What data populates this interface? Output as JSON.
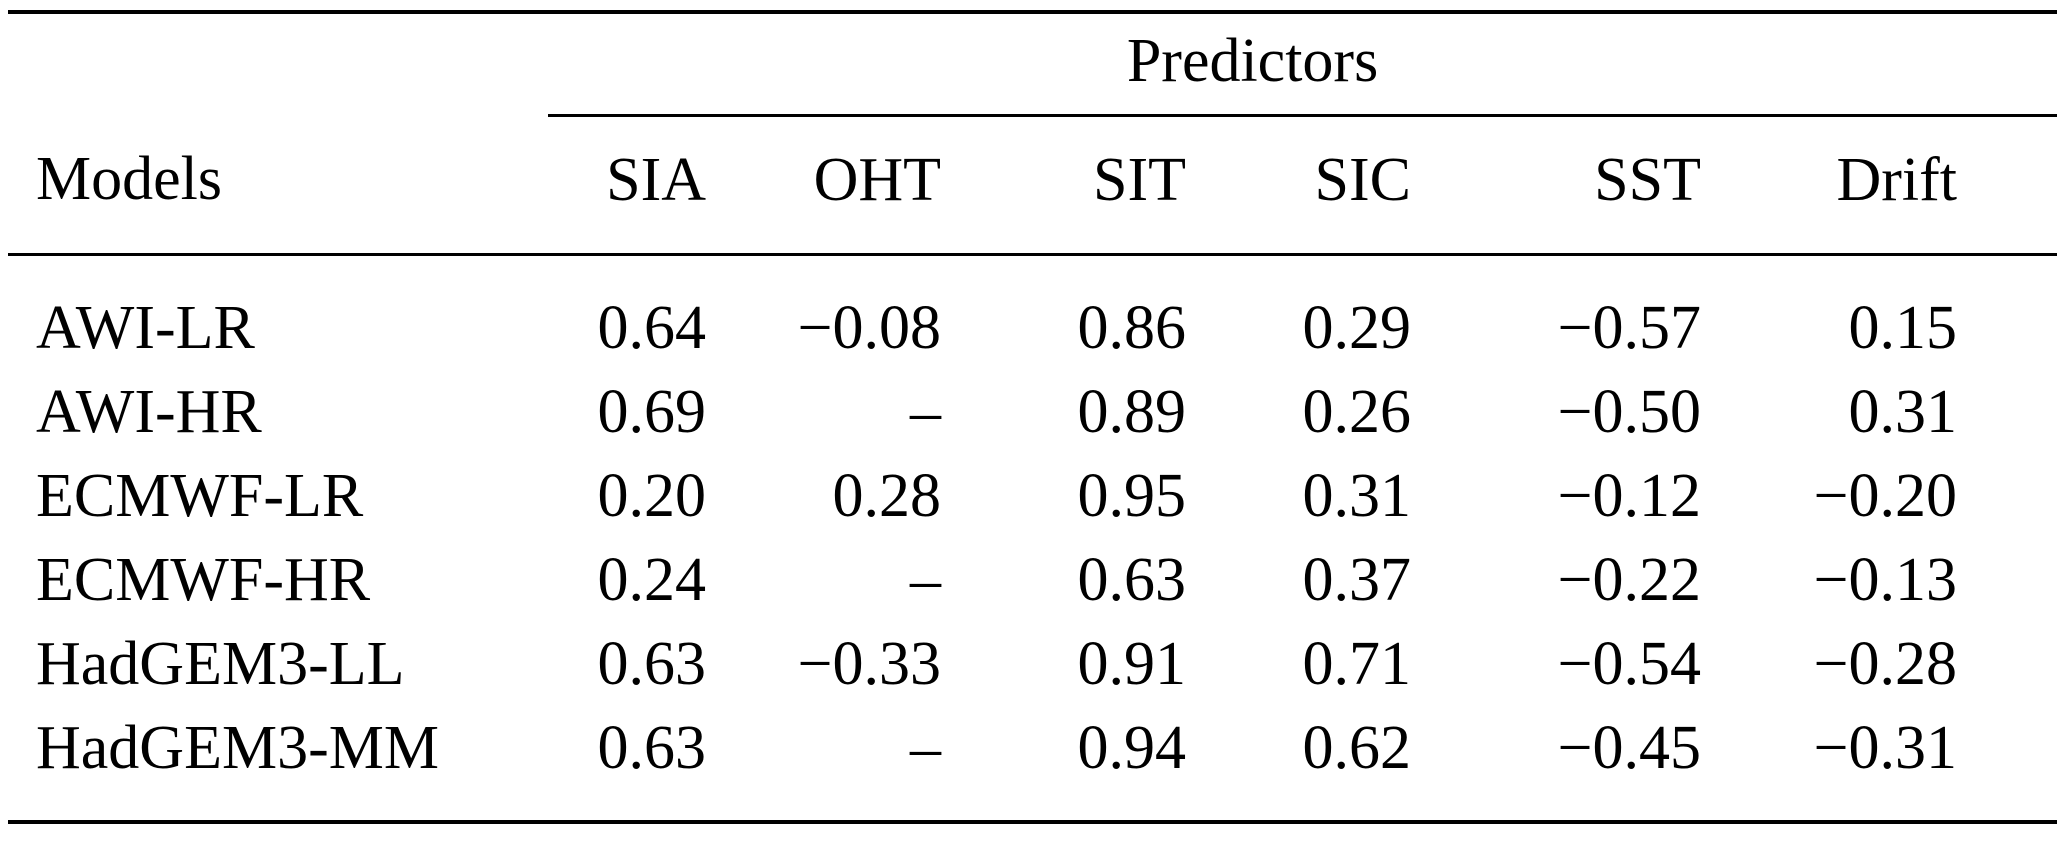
{
  "table": {
    "group_header": "Predictors",
    "corner_header": "Models",
    "columns": [
      "SIA",
      "OHT",
      "SIT",
      "SIC",
      "SST",
      "Drift"
    ],
    "rows": [
      {
        "model": "AWI-LR",
        "values": [
          "0.64",
          "−0.08",
          "0.86",
          "0.29",
          "−0.57",
          "0.15"
        ]
      },
      {
        "model": "AWI-HR",
        "values": [
          "0.69",
          "–",
          "0.89",
          "0.26",
          "−0.50",
          "0.31"
        ]
      },
      {
        "model": "ECMWF-LR",
        "values": [
          "0.20",
          "0.28",
          "0.95",
          "0.31",
          "−0.12",
          "−0.20"
        ]
      },
      {
        "model": "ECMWF-HR",
        "values": [
          "0.24",
          "–",
          "0.63",
          "0.37",
          "−0.22",
          "−0.13"
        ]
      },
      {
        "model": "HadGEM3-LL",
        "values": [
          "0.63",
          "−0.33",
          "0.91",
          "0.71",
          "−0.54",
          "−0.28"
        ]
      },
      {
        "model": "HadGEM3-MM",
        "values": [
          "0.63",
          "–",
          "0.94",
          "0.62",
          "−0.45",
          "−0.31"
        ]
      }
    ]
  },
  "colors": {
    "background": "#ffffff",
    "text": "#000000",
    "rule": "#000000"
  }
}
